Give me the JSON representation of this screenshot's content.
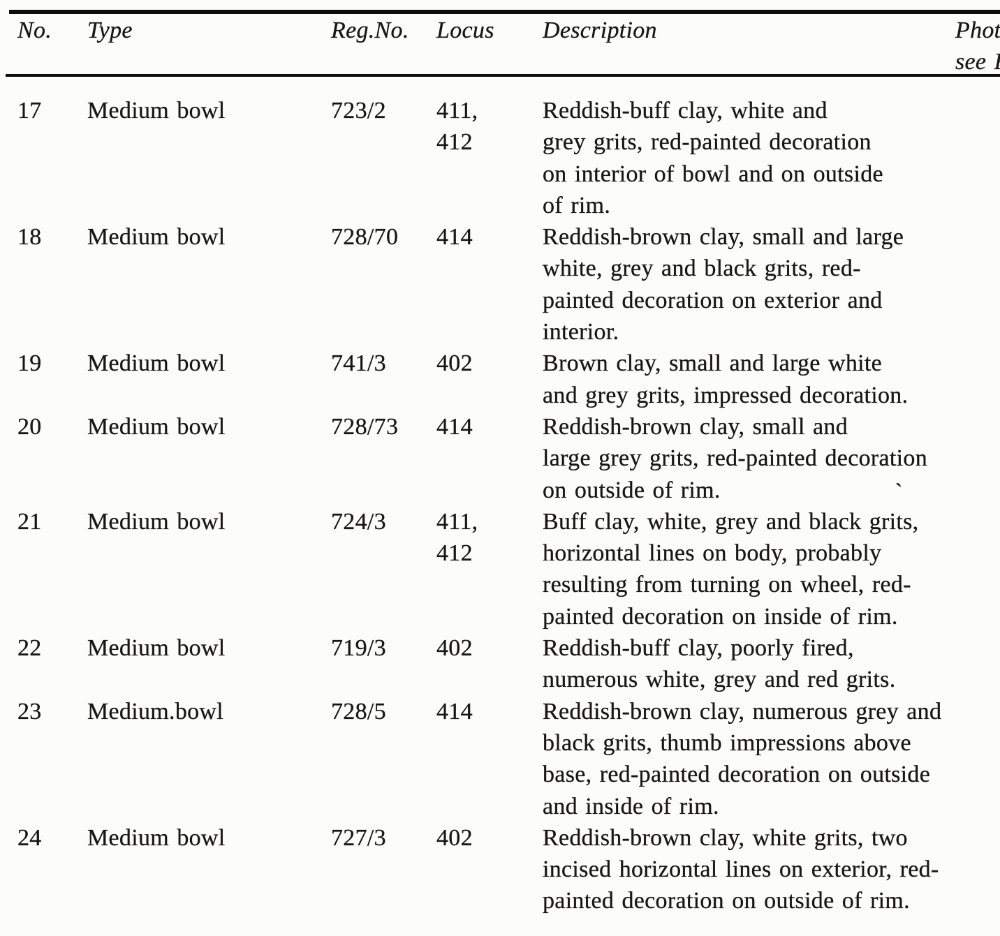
{
  "colors": {
    "paper": "#fcfcfb",
    "ink": "#181715"
  },
  "header": {
    "no": "No.",
    "type": "Type",
    "reg_no": "Reg.No.",
    "locus": "Locus",
    "description": "Description",
    "photo_line1": "Phot",
    "photo_line2": "see F"
  },
  "rows": [
    {
      "no": "17",
      "type": "Medium bowl",
      "reg_no": "723/2",
      "locus_lines": [
        "411,",
        "412"
      ],
      "description_lines": [
        "Reddish-buff clay, white and",
        "grey grits, red-painted decoration",
        "on interior of bowl and on outside",
        "of rim."
      ]
    },
    {
      "no": "18",
      "type": "Medium bowl",
      "reg_no": "728/70",
      "locus_lines": [
        "414"
      ],
      "description_lines": [
        "Reddish-brown clay, small and large",
        "white, grey and black grits, red-",
        "painted decoration on exterior and",
        "interior."
      ]
    },
    {
      "no": "19",
      "type": "Medium bowl",
      "reg_no": "741/3",
      "locus_lines": [
        "402"
      ],
      "description_lines": [
        "Brown clay, small and large white",
        "and grey grits, impressed decoration."
      ]
    },
    {
      "no": "20",
      "type": "Medium bowl",
      "reg_no": "728/73",
      "locus_lines": [
        "414"
      ],
      "description_lines": [
        "Reddish-brown clay, small and",
        "large grey grits, red-painted decoration",
        "on outside of rim."
      ]
    },
    {
      "no": "21",
      "type": "Medium bowl",
      "reg_no": "724/3",
      "locus_lines": [
        "411,",
        "412"
      ],
      "description_lines": [
        "Buff clay, white, grey and black grits,",
        "horizontal lines on body, probably",
        "resulting from turning on wheel, red-",
        "painted decoration on inside of rim."
      ]
    },
    {
      "no": "22",
      "type": "Medium bowl",
      "reg_no": "719/3",
      "locus_lines": [
        "402"
      ],
      "description_lines": [
        "Reddish-buff clay, poorly fired,",
        "numerous white, grey and red grits."
      ]
    },
    {
      "no": "23",
      "type": "Medium.bowl",
      "reg_no": "728/5",
      "locus_lines": [
        "414"
      ],
      "description_lines": [
        "Reddish-brown clay, numerous grey and",
        "black grits, thumb impressions above",
        "base, red-painted decoration on outside",
        "and inside of rim."
      ]
    },
    {
      "no": "24",
      "type": "Medium bowl",
      "reg_no": "727/3",
      "locus_lines": [
        "402"
      ],
      "description_lines": [
        "Reddish-brown clay, white grits, two",
        "incised horizontal lines on exterior, red-",
        "painted decoration on outside of rim."
      ]
    }
  ],
  "artifacts": {
    "stray_mark": "`"
  }
}
